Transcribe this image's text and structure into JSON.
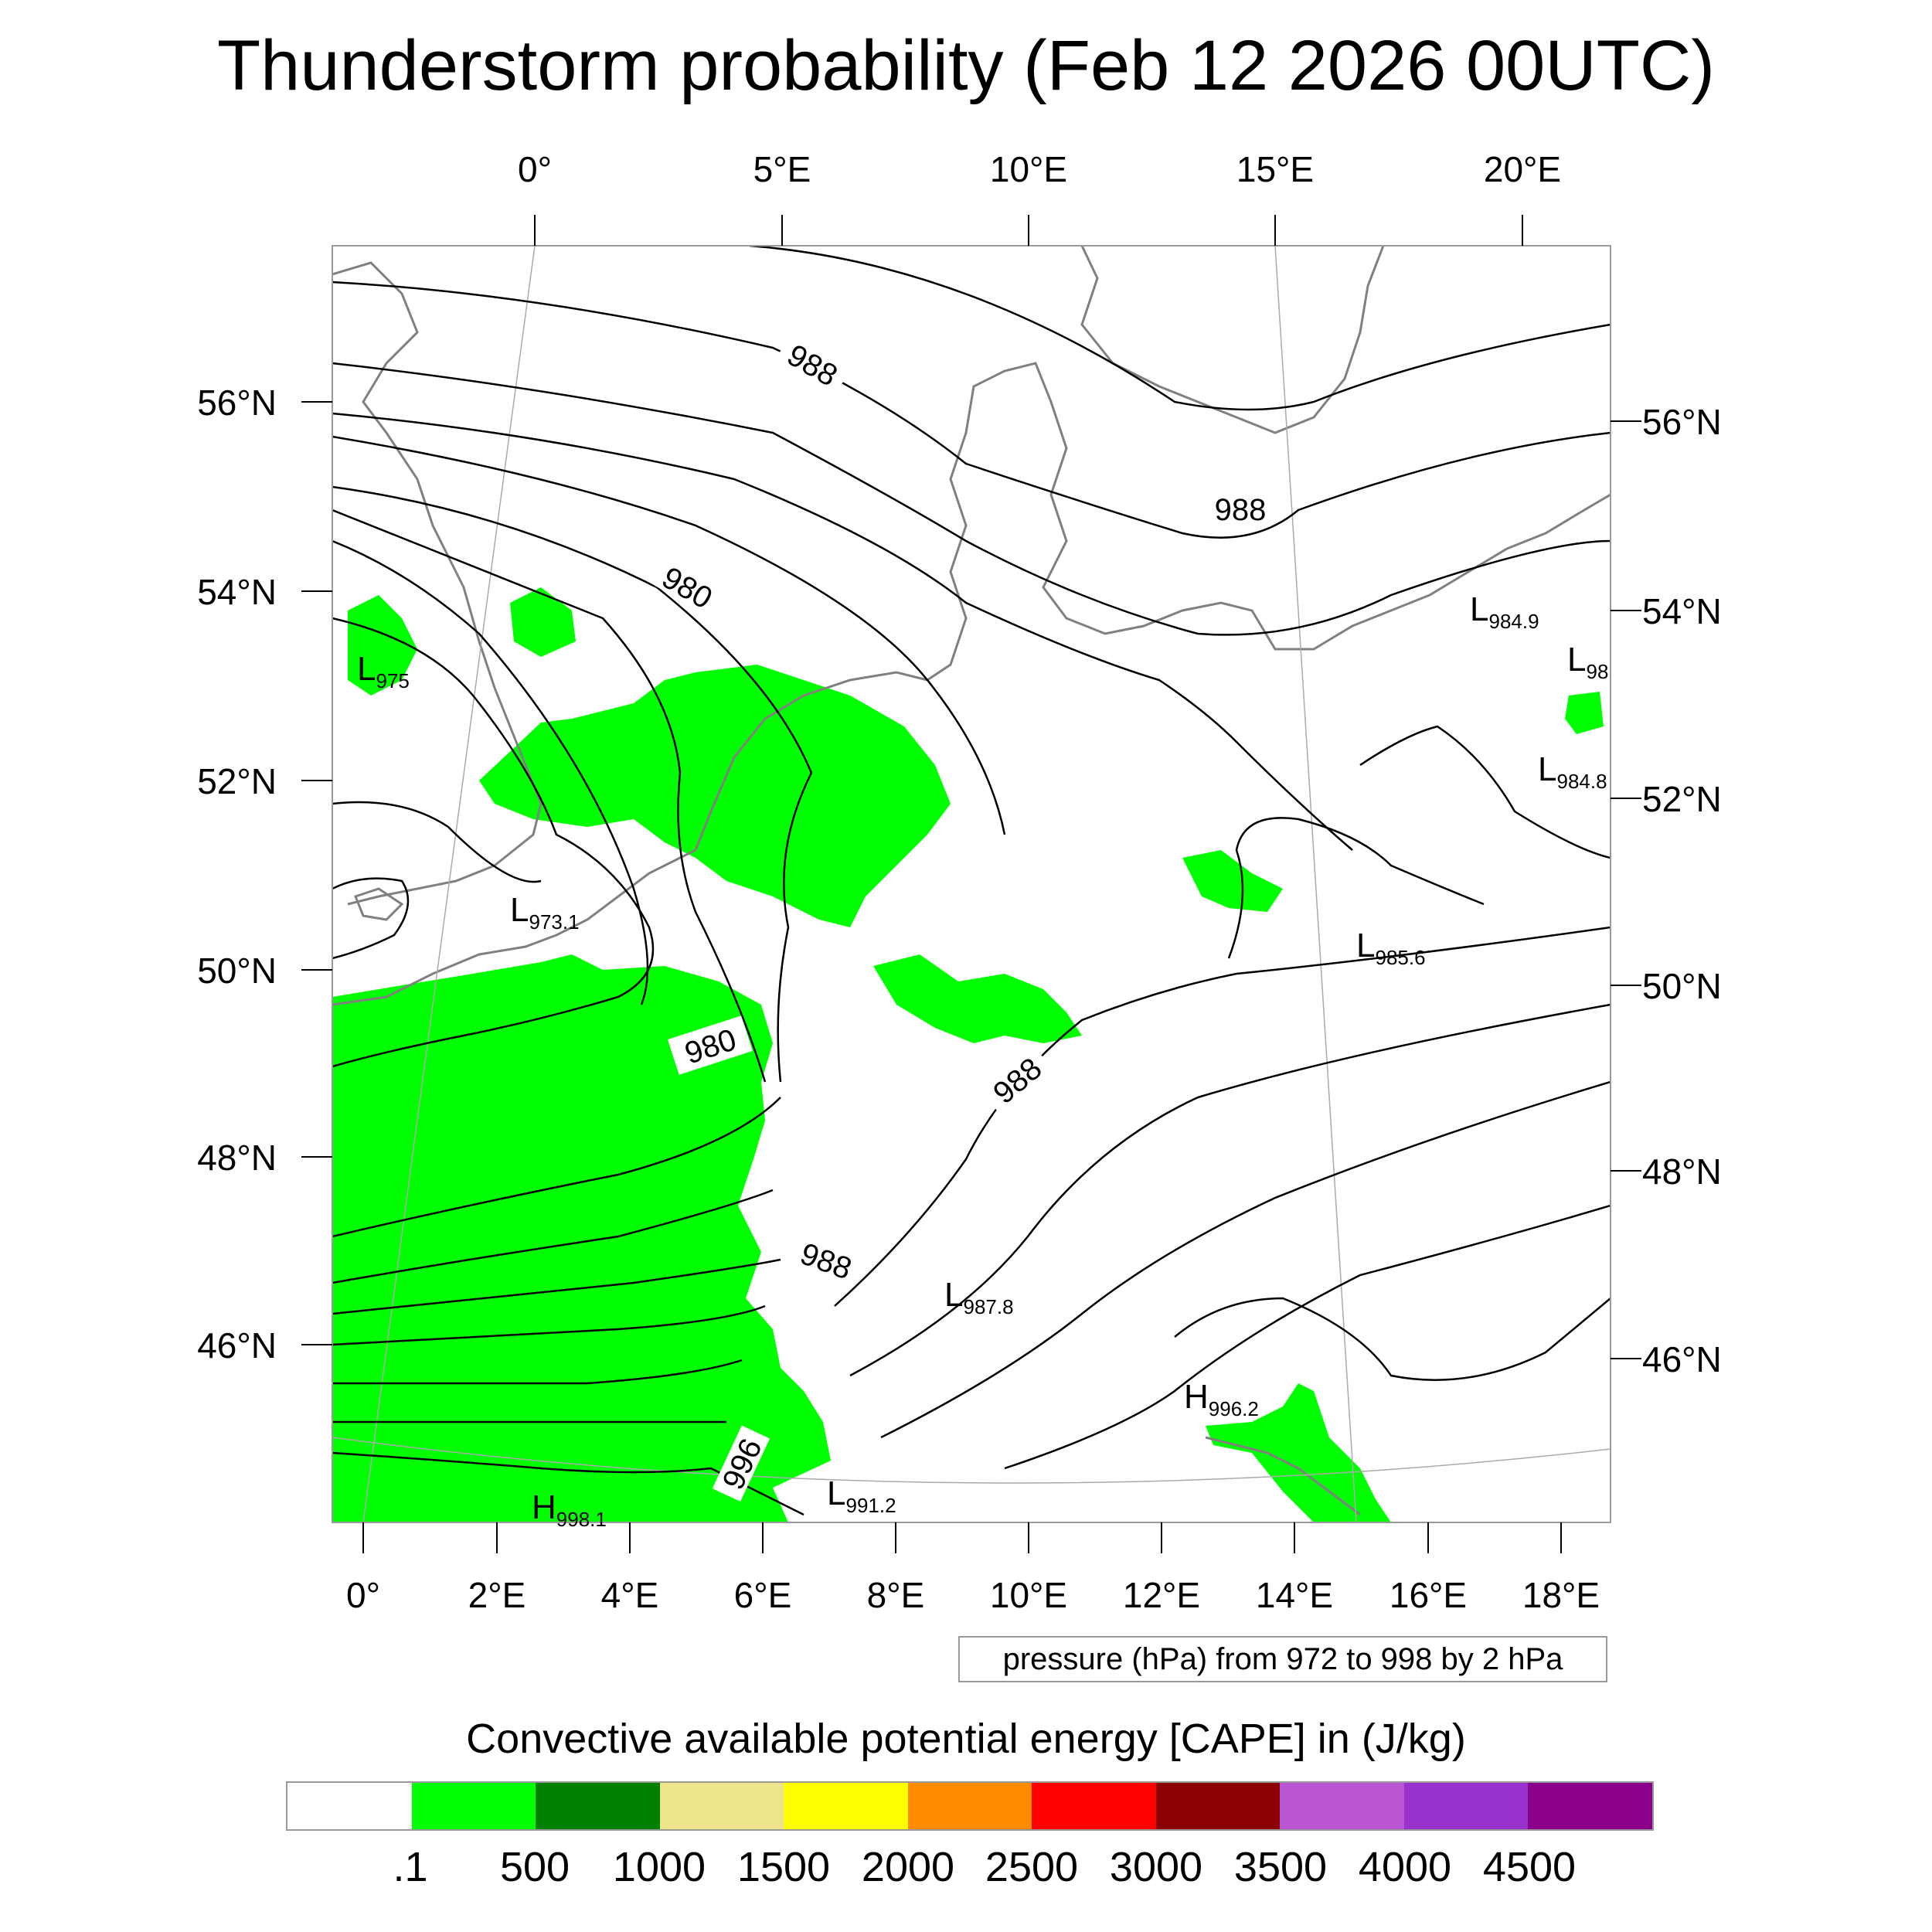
{
  "title": "Thunderstorm probability (Feb 12 2026 00UTC)",
  "map": {
    "top_lon_labels": [
      "0°",
      "5°E",
      "10°E",
      "15°E",
      "20°E"
    ],
    "bottom_lon_labels": [
      "0°",
      "2°E",
      "4°E",
      "6°E",
      "8°E",
      "10°E",
      "12°E",
      "14°E",
      "16°E",
      "18°E"
    ],
    "left_lat_labels": [
      "56°N",
      "54°N",
      "52°N",
      "50°N",
      "48°N",
      "46°N"
    ],
    "right_lat_labels": [
      "56°N",
      "54°N",
      "52°N",
      "50°N",
      "48°N",
      "46°N"
    ],
    "contour_labels": [
      "988",
      "988",
      "980",
      "980",
      "988",
      "988",
      "996"
    ],
    "pressure_centers": [
      {
        "type": "L",
        "value": "975"
      },
      {
        "type": "L",
        "value": "973.1"
      },
      {
        "type": "L",
        "value": "984.9"
      },
      {
        "type": "L",
        "value": "98"
      },
      {
        "type": "L",
        "value": "984.8"
      },
      {
        "type": "L",
        "value": "985.6"
      },
      {
        "type": "L",
        "value": "987.8"
      },
      {
        "type": "L",
        "value": "991.2"
      },
      {
        "type": "H",
        "value": "996.2"
      },
      {
        "type": "H",
        "value": "998.1"
      }
    ],
    "colors": {
      "cape_green": "#00ff00",
      "isobar": "#000000",
      "coast": "#808080",
      "grid": "#aaaaaa"
    }
  },
  "pressure_info": "pressure (hPa) from 972 to 998 by 2 hPa",
  "colorbar": {
    "title": "Convective available potential energy [CAPE] in (J/kg)",
    "colors": [
      "#ffffff",
      "#00ff00",
      "#007f00",
      "#eee58b",
      "#ffff00",
      "#ff8c00",
      "#ff0000",
      "#8b0000",
      "#ba55d3",
      "#9932cc",
      "#8b008b"
    ],
    "labels": [
      ".1",
      "500",
      "1000",
      "1500",
      "2000",
      "2500",
      "3000",
      "3500",
      "4000",
      "4500"
    ]
  }
}
